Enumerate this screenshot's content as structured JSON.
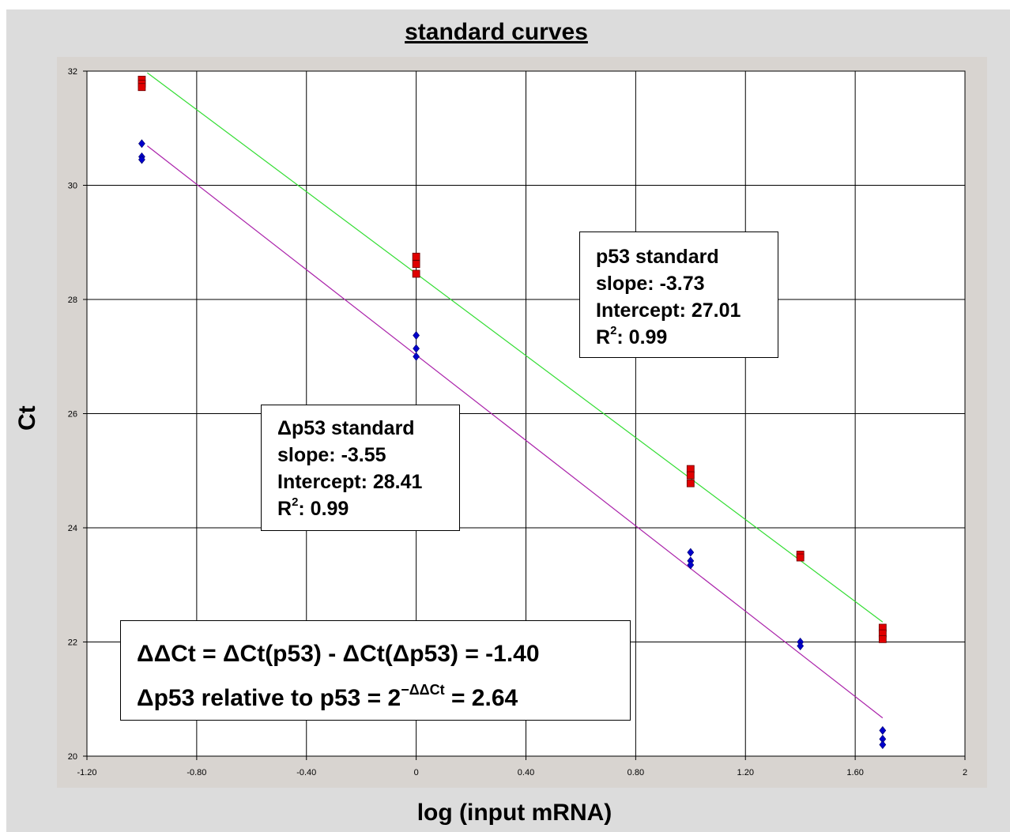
{
  "chart_data": {
    "type": "scatter",
    "title": "standard curves",
    "xlabel": "log (input mRNA)",
    "ylabel": "Ct",
    "xlim": [
      -1.2,
      2.0
    ],
    "ylim": [
      20,
      32
    ],
    "x_tick_labels": [
      "-1.20",
      "-0.80",
      "-0.40",
      "0",
      "0.40",
      "0.80",
      "1.20",
      "1.60",
      "2"
    ],
    "y_tick_labels": [
      "20",
      "22",
      "24",
      "26",
      "28",
      "30",
      "32"
    ],
    "grid": true,
    "series": [
      {
        "color": "#e00000",
        "marker": "square",
        "x": [
          -1,
          -1,
          -1,
          0,
          0,
          0,
          1,
          1,
          1,
          1.4,
          1.4,
          1.7,
          1.7,
          1.7
        ],
        "y": [
          31.85,
          31.78,
          31.72,
          28.75,
          28.62,
          28.45,
          25.03,
          24.92,
          24.78,
          23.53,
          23.48,
          22.25,
          22.15,
          22.05
        ],
        "fit_color": "#33dd33",
        "fit": {
          "x": [
            -0.98,
            1.7
          ],
          "y": [
            31.97,
            22.35
          ]
        }
      },
      {
        "color": "#0000cc",
        "marker": "diamond",
        "x": [
          -1,
          -1,
          -1,
          0,
          0,
          0,
          1,
          1,
          1,
          1.4,
          1.4,
          1.7,
          1.7,
          1.7
        ],
        "y": [
          30.73,
          30.5,
          30.45,
          27.37,
          27.14,
          27.0,
          23.57,
          23.42,
          23.35,
          22.0,
          21.93,
          20.45,
          20.3,
          20.2
        ],
        "fit_color": "#aa22aa",
        "fit": {
          "x": [
            -0.98,
            1.7
          ],
          "y": [
            30.69,
            20.67
          ]
        }
      }
    ],
    "annotations": [
      {
        "lines": [
          "p53 standard",
          "slope: -3.73",
          "Intercept: 27.01"
        ],
        "r2_label": "R",
        "r2_sup": "2",
        "r2_value": ": 0.99"
      },
      {
        "lines": [
          "Δp53 standard",
          "slope: -3.55",
          "Intercept: 28.41"
        ],
        "r2_label": "R",
        "r2_sup": "2",
        "r2_value": ": 0.99"
      },
      {
        "line1": "ΔΔCt = ΔCt(p53) - ΔCt(Δp53) = -1.40",
        "line2_pre": "Δp53  relative to p53 = 2",
        "line2_sup": "−ΔΔCt",
        "line2_post": " = 2.64"
      }
    ]
  }
}
